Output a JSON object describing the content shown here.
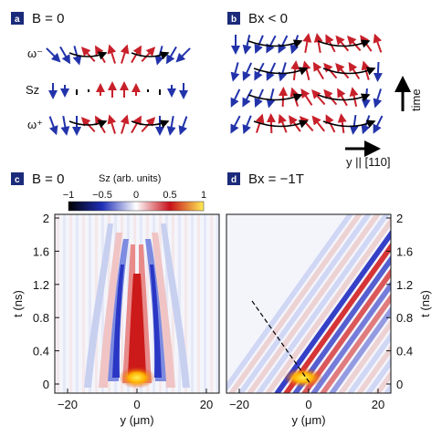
{
  "panels": {
    "a": {
      "letter": "a",
      "title": "B = 0",
      "rows": [
        "ω⁻",
        "Sz",
        "ω⁺"
      ]
    },
    "b": {
      "letter": "b",
      "title": "Bx < 0",
      "time_label": "time",
      "direction_label": "y || [110]"
    },
    "c": {
      "letter": "c",
      "title": "B = 0"
    },
    "d": {
      "letter": "d",
      "title": "Bx = −1T"
    }
  },
  "colorbar": {
    "label": "Sz (arb. units)",
    "ticks": [
      "−1",
      "−0.5",
      "0",
      "0.5",
      "1"
    ],
    "colors": [
      "#000000",
      "#1f2fb8",
      "#ffffff",
      "#c8101a",
      "#ffee55"
    ]
  },
  "axes": {
    "xlabel": "y (μm)",
    "ylabel": "t (ns)",
    "xticks": [
      "−20",
      "0",
      "20"
    ],
    "yticks": [
      "0",
      "0.4",
      "0.8",
      "1.2",
      "1.6",
      "2"
    ]
  },
  "colors": {
    "red": "#c8202a",
    "blue": "#2233aa",
    "black": "#000000"
  }
}
